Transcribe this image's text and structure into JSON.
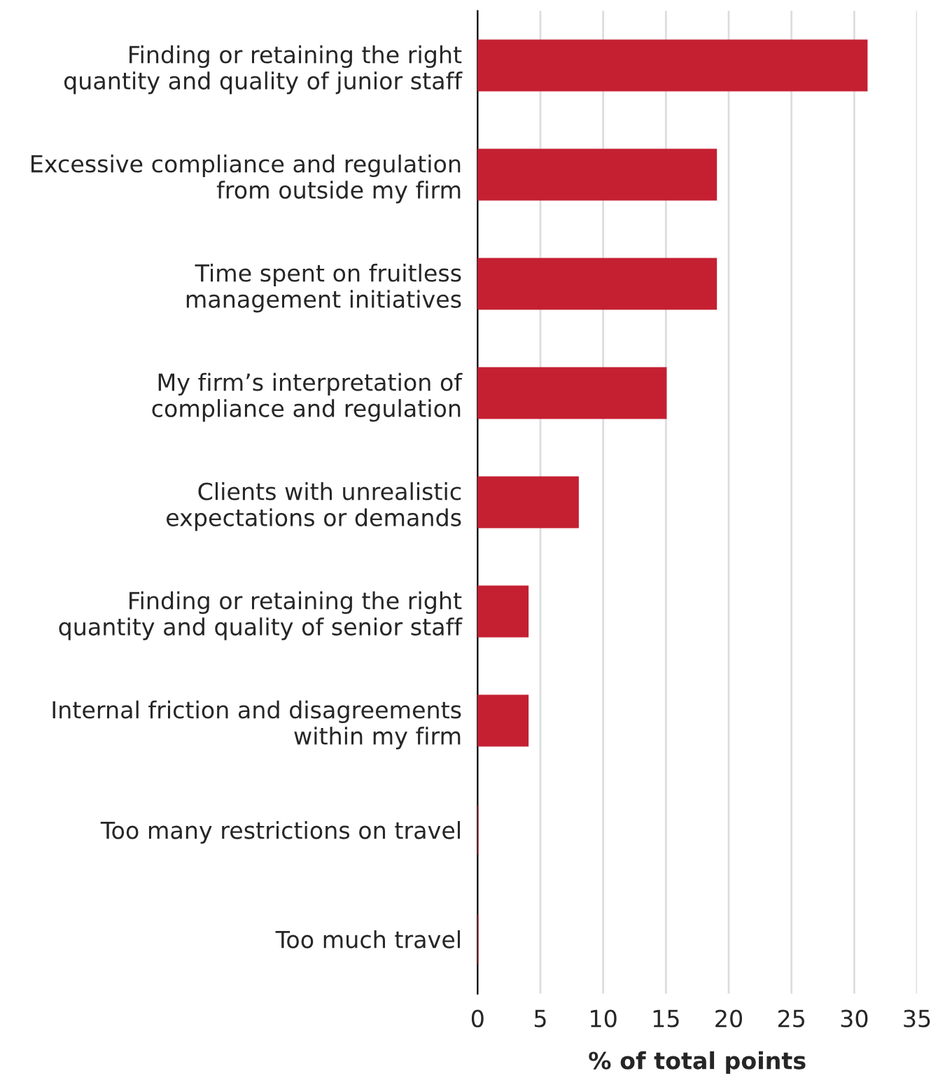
{
  "chart_data": {
    "type": "bar",
    "orientation": "horizontal",
    "xlabel": "% of total points",
    "categories": [
      "Finding or retaining the right\nquantity and quality of junior staff",
      "Excessive compliance and regulation\nfrom outside my firm",
      "Time spent on fruitless\nmanagement initiatives",
      "My firm’s interpretation of\ncompliance and regulation",
      "Clients with unrealistic\nexpectations or demands",
      "Finding or retaining the right\nquantity and quality of senior staff",
      "Internal friction and disagreements\nwithin my firm",
      "Too many restrictions on travel",
      "Too much travel"
    ],
    "values": [
      31,
      19,
      19,
      15,
      8,
      4,
      4,
      0,
      0
    ],
    "color": "#c42032",
    "xlim": [
      0,
      35
    ],
    "xticks": [
      0,
      5,
      10,
      15,
      20,
      25,
      30,
      35
    ],
    "grid": "x"
  }
}
